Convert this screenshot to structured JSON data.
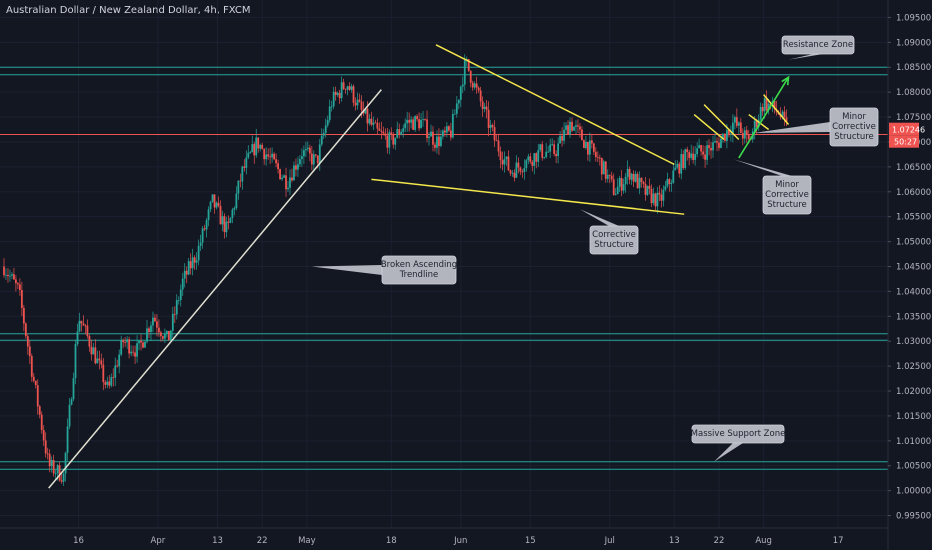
{
  "chart_data": {
    "type": "candlestick",
    "title": "Australian Dollar / New Zealand Dollar, 4h, FXCM",
    "y_axis": {
      "range": [
        0.9925,
        1.0985
      ],
      "ticks": [
        "1.09500",
        "1.09000",
        "1.08500",
        "1.08000",
        "1.07500",
        "1.07000",
        "1.06500",
        "1.06000",
        "1.05500",
        "1.05000",
        "1.04500",
        "1.04000",
        "1.03500",
        "1.03000",
        "1.02500",
        "1.02000",
        "1.01500",
        "1.01000",
        "1.00500",
        "1.00000",
        "0.99500"
      ],
      "tick_values": [
        1.095,
        1.09,
        1.085,
        1.08,
        1.075,
        1.07,
        1.065,
        1.06,
        1.055,
        1.05,
        1.045,
        1.04,
        1.035,
        1.03,
        1.025,
        1.02,
        1.015,
        1.01,
        1.005,
        1.0,
        0.995
      ]
    },
    "x_axis": {
      "ticks": [
        "16",
        "Apr",
        "13",
        "22",
        "May",
        "18",
        "Jun",
        "15",
        "Jul",
        "13",
        "22",
        "Aug",
        "17"
      ],
      "tick_positions_days": [
        15,
        31,
        43,
        52,
        61,
        78,
        92,
        106,
        122,
        135,
        144,
        153,
        168
      ]
    },
    "current_price": "1.07246",
    "countdown": "50:27",
    "price_series": [
      [
        0,
        1.045
      ],
      [
        3,
        1.04
      ],
      [
        6,
        1.022
      ],
      [
        9,
        1.005
      ],
      [
        12,
        1.003
      ],
      [
        15,
        1.035
      ],
      [
        18,
        1.028
      ],
      [
        21,
        1.02
      ],
      [
        24,
        1.03
      ],
      [
        27,
        1.028
      ],
      [
        30,
        1.035
      ],
      [
        33,
        1.03
      ],
      [
        36,
        1.042
      ],
      [
        39,
        1.048
      ],
      [
        42,
        1.058
      ],
      [
        45,
        1.052
      ],
      [
        48,
        1.064
      ],
      [
        51,
        1.07
      ],
      [
        54,
        1.066
      ],
      [
        57,
        1.062
      ],
      [
        60,
        1.068
      ],
      [
        63,
        1.066
      ],
      [
        66,
        1.078
      ],
      [
        69,
        1.082
      ],
      [
        72,
        1.076
      ],
      [
        75,
        1.072
      ],
      [
        78,
        1.07
      ],
      [
        81,
        1.074
      ],
      [
        84,
        1.074
      ],
      [
        87,
        1.07
      ],
      [
        90,
        1.072
      ],
      [
        93,
        1.086
      ],
      [
        96,
        1.078
      ],
      [
        99,
        1.07
      ],
      [
        102,
        1.064
      ],
      [
        105,
        1.066
      ],
      [
        108,
        1.068
      ],
      [
        111,
        1.068
      ],
      [
        114,
        1.074
      ],
      [
        117,
        1.07
      ],
      [
        120,
        1.066
      ],
      [
        123,
        1.06
      ],
      [
        126,
        1.064
      ],
      [
        129,
        1.06
      ],
      [
        132,
        1.058
      ],
      [
        135,
        1.064
      ],
      [
        138,
        1.068
      ],
      [
        141,
        1.068
      ],
      [
        144,
        1.07
      ],
      [
        147,
        1.074
      ],
      [
        150,
        1.07
      ],
      [
        153,
        1.078
      ],
      [
        156,
        1.076
      ],
      [
        158,
        1.072
      ]
    ],
    "horizontal_levels": [
      {
        "value": 1.085,
        "color": "#26a69a"
      },
      {
        "value": 1.0835,
        "color": "#26a69a"
      },
      {
        "value": 1.0715,
        "color": "#ef5350"
      },
      {
        "value": 1.0315,
        "color": "#26a69a"
      },
      {
        "value": 1.0302,
        "color": "#26a69a"
      },
      {
        "value": 1.0058,
        "color": "#26a69a"
      },
      {
        "value": 1.0043,
        "color": "#26a69a"
      }
    ],
    "trendlines": [
      {
        "name": "ascending-trendline",
        "color": "#e0e0d0",
        "points": [
          [
            9,
            1.0005
          ],
          [
            76,
            1.0805
          ]
        ]
      },
      {
        "name": "upper-falling-wedge",
        "color": "#f5e84b",
        "points": [
          [
            87,
            1.0895
          ],
          [
            135,
            1.0655
          ]
        ]
      },
      {
        "name": "lower-falling-wedge",
        "color": "#f5e84b",
        "points": [
          [
            74,
            1.0625
          ],
          [
            137,
            1.0555
          ]
        ]
      },
      {
        "name": "minor-flag-1-top",
        "color": "#f5e84b",
        "points": [
          [
            141,
            1.0775
          ],
          [
            148,
            1.0705
          ]
        ]
      },
      {
        "name": "minor-flag-1-bottom",
        "color": "#f5e84b",
        "points": [
          [
            139,
            1.0755
          ],
          [
            145,
            1.0705
          ]
        ]
      },
      {
        "name": "minor-flag-2-top",
        "color": "#f5e84b",
        "points": [
          [
            153,
            1.0795
          ],
          [
            158,
            1.0735
          ]
        ]
      },
      {
        "name": "minor-flag-2-bottom",
        "color": "#f5e84b",
        "points": [
          [
            150,
            1.0755
          ],
          [
            154,
            1.0725
          ]
        ]
      }
    ],
    "arrow": {
      "color": "#3ddc4a",
      "from": [
        148,
        1.0668
      ],
      "to": [
        158,
        1.083
      ]
    },
    "annotations": [
      {
        "text": [
          "Resistance Zone"
        ],
        "anchor": [
          158,
          1.0865
        ]
      },
      {
        "text": [
          "Minor",
          "Corrective",
          "Structure"
        ],
        "anchor": [
          151,
          1.0718
        ]
      },
      {
        "text": [
          "Minor",
          "Corrective",
          "Structure"
        ],
        "anchor": [
          147,
          1.0665
        ]
      },
      {
        "text": [
          "Corrective",
          "Structure"
        ],
        "anchor": [
          116,
          1.0565
        ]
      },
      {
        "text": [
          "Broken Ascending",
          "Trendline"
        ],
        "anchor": [
          62,
          1.045
        ]
      },
      {
        "text": [
          "Massive Support Zone"
        ],
        "anchor": [
          143,
          1.0058
        ]
      }
    ]
  }
}
